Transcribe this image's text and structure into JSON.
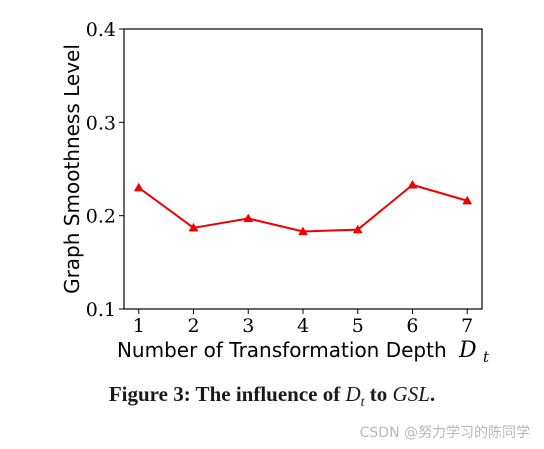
{
  "chart_data": {
    "type": "line",
    "x": [
      1,
      2,
      3,
      4,
      5,
      6,
      7
    ],
    "series": [
      {
        "values": [
          0.23,
          0.187,
          0.197,
          0.183,
          0.185,
          0.233,
          0.216
        ],
        "color": "#ee0000",
        "marker": "triangle"
      }
    ],
    "xticks": [
      "1",
      "2",
      "3",
      "4",
      "5",
      "6",
      "7"
    ],
    "yticks": [
      "0.1",
      "0.2",
      "0.3",
      "0.4"
    ],
    "ylim": [
      0.1,
      0.4
    ],
    "xlabel": "Number of Transformation Depth",
    "xlabel_var": "D",
    "xlabel_sub": "t",
    "ylabel": "Graph Smoothness Level",
    "grid": false
  },
  "caption": {
    "prefix": "Figure 3: The influence of ",
    "var1": "D",
    "var1_sub": "t",
    "middle": " to ",
    "var2": "GSL",
    "suffix": "."
  },
  "watermark": "CSDN @努力学习的陈同学"
}
